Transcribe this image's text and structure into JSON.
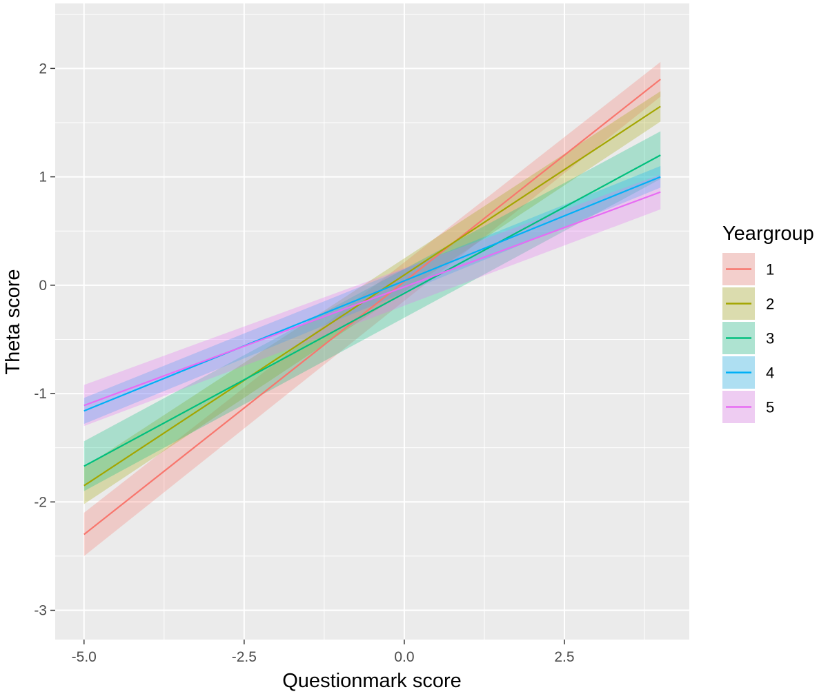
{
  "chart_data": {
    "type": "line",
    "title": "",
    "xlabel": "Questionmark score",
    "ylabel": "Theta score",
    "xlim": [
      -5.45,
      4.45
    ],
    "ylim": [
      -3.27,
      2.6
    ],
    "x_ticks": [
      -5.0,
      -2.5,
      0.0,
      2.5
    ],
    "x_tick_labels": [
      "-5.0",
      "-2.5",
      "0.0",
      "2.5"
    ],
    "y_ticks": [
      -3,
      -2,
      -1,
      0,
      1,
      2
    ],
    "y_tick_labels": [
      "-3",
      "-2",
      "-1",
      "0",
      "1",
      "2"
    ],
    "grid": true,
    "panel_color": "#ebebeb",
    "legend": {
      "title": "Yeargroup",
      "position": "right"
    },
    "series": [
      {
        "name": "1",
        "color": "#f8766d",
        "x": [
          -5.0,
          4.0
        ],
        "y": [
          -2.3,
          1.9
        ],
        "lower": [
          -2.5,
          1.74
        ],
        "upper": [
          -2.1,
          2.06
        ]
      },
      {
        "name": "2",
        "color": "#a3a500",
        "x": [
          -5.0,
          4.0
        ],
        "y": [
          -1.85,
          1.65
        ],
        "lower": [
          -2.02,
          1.51
        ],
        "upper": [
          -1.68,
          1.79
        ]
      },
      {
        "name": "3",
        "color": "#00bf7d",
        "x": [
          -5.0,
          4.0
        ],
        "y": [
          -1.67,
          1.2
        ],
        "lower": [
          -1.9,
          0.98
        ],
        "upper": [
          -1.44,
          1.42
        ]
      },
      {
        "name": "4",
        "color": "#00b0f6",
        "x": [
          -5.0,
          4.0
        ],
        "y": [
          -1.16,
          1.0
        ],
        "lower": [
          -1.28,
          0.9
        ],
        "upper": [
          -1.04,
          1.1
        ]
      },
      {
        "name": "5",
        "color": "#e76bf3",
        "x": [
          -5.0,
          4.0
        ],
        "y": [
          -1.11,
          0.86
        ],
        "lower": [
          -1.3,
          0.7
        ],
        "upper": [
          -0.92,
          1.02
        ]
      }
    ]
  }
}
